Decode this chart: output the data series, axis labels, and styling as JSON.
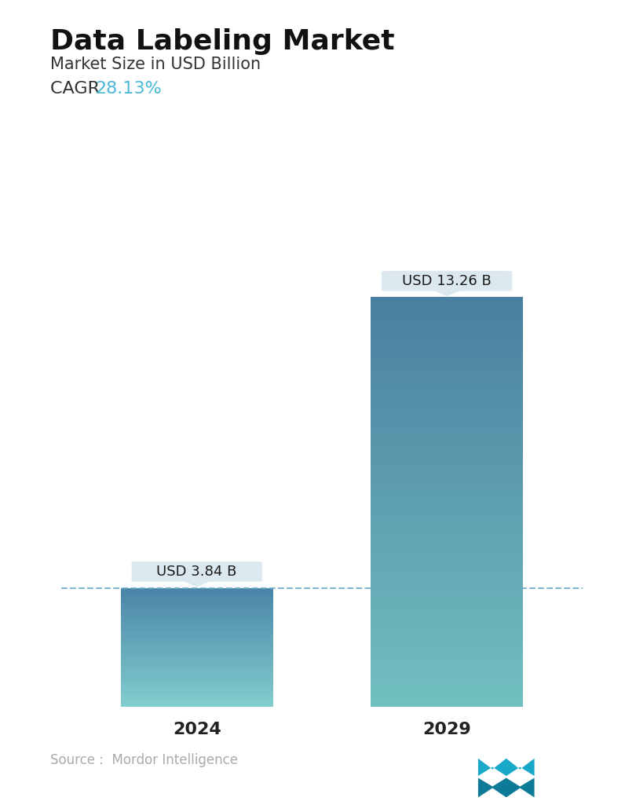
{
  "title": "Data Labeling Market",
  "subtitle": "Market Size in USD Billion",
  "cagr_label": "CAGR ",
  "cagr_value": "28.13%",
  "cagr_color": "#4ab8d8",
  "categories": [
    "2024",
    "2029"
  ],
  "values": [
    3.84,
    13.26
  ],
  "bar_labels": [
    "USD 3.84 B",
    "USD 13.26 B"
  ],
  "bar1_color_top": "#4a85a8",
  "bar1_color_bottom": "#82cece",
  "bar2_color_top": "#4a7fa0",
  "bar2_color_bottom": "#72c0c0",
  "dashed_line_color": "#6aaac8",
  "tooltip_bg": "#dce8f0",
  "tooltip_text_color": "#1a1a1a",
  "source_text": "Source :  Mordor Intelligence",
  "source_color": "#aaaaaa",
  "background_color": "#ffffff",
  "title_fontsize": 26,
  "subtitle_fontsize": 15,
  "cagr_fontsize": 16,
  "tick_fontsize": 16,
  "label_fontsize": 13,
  "source_fontsize": 12,
  "ylim": [
    0,
    15
  ],
  "bar_width": 0.28,
  "x_positions": [
    0.27,
    0.73
  ]
}
